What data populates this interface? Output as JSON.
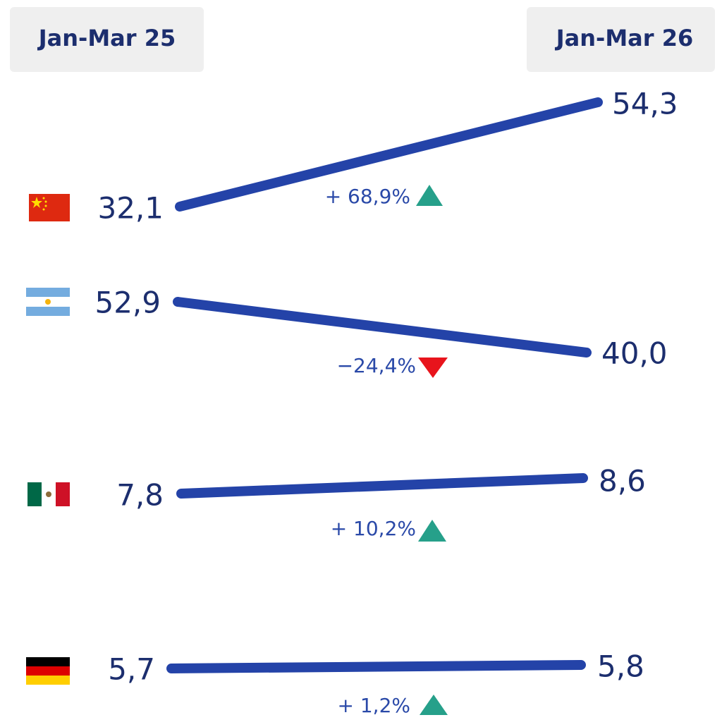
{
  "header": {
    "left": "Jan-Mar 25",
    "right": "Jan-Mar 26"
  },
  "rows": [
    {
      "start": "32,1",
      "end": "54,3",
      "change": "+ 68,9%"
    },
    {
      "start": "52,9",
      "end": "40,0",
      "change": "−24,4%"
    },
    {
      "start": "7,8",
      "end": "8,6",
      "change": "+ 10,2%"
    },
    {
      "start": "5,7",
      "end": "5,8",
      "change": "+ 1,2%"
    }
  ]
}
